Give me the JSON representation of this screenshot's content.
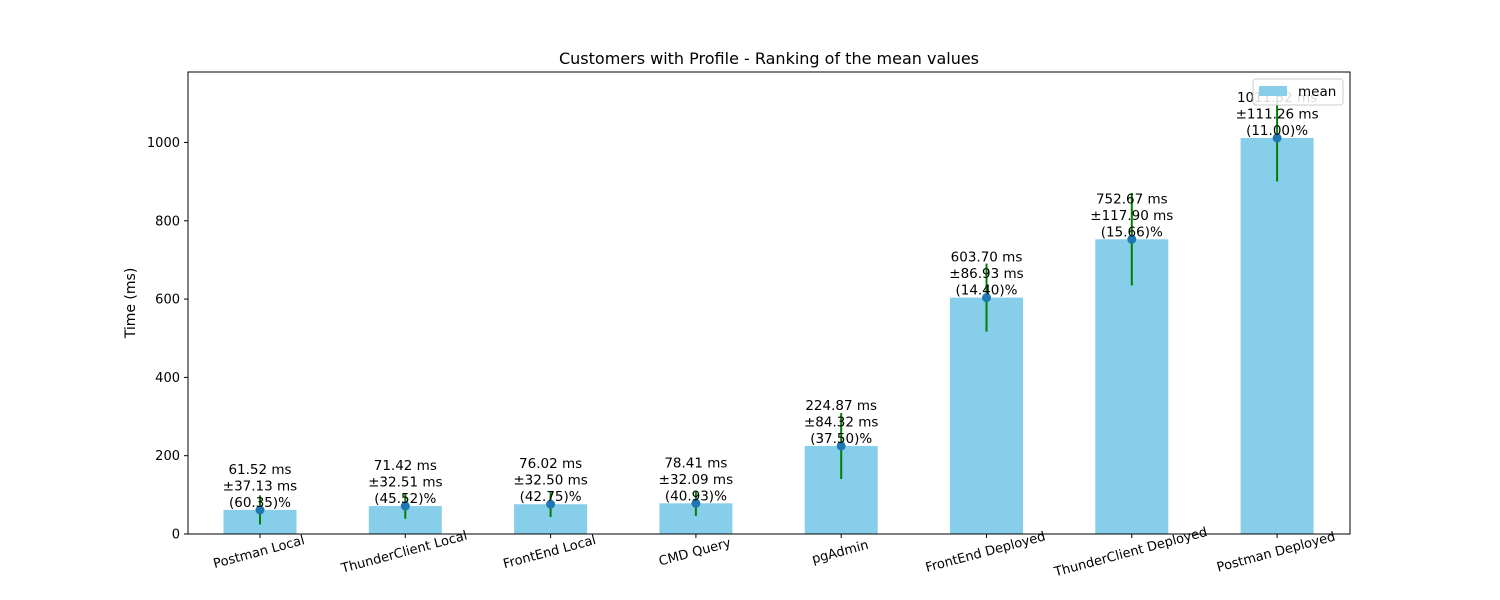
{
  "chart_data": {
    "type": "bar",
    "title": "Customers with Profile - Ranking of the mean values",
    "xlabel": "",
    "ylabel": "Time (ms)",
    "ylim": [
      0,
      1180
    ],
    "yticks": [
      "0",
      "200",
      "400",
      "600",
      "800",
      "1000"
    ],
    "grid": false,
    "legend": {
      "position": "top-right",
      "entries": [
        "mean"
      ]
    },
    "categories": [
      "Postman Local",
      "ThunderClient Local",
      "FrontEnd Local",
      "CMD Query",
      "pgAdmin",
      "FrontEnd Deployed",
      "ThunderClient Deployed",
      "Postman Deployed"
    ],
    "series": [
      {
        "name": "mean",
        "values": [
          61.52,
          71.42,
          76.02,
          78.41,
          224.87,
          603.7,
          752.67,
          1011.52
        ]
      }
    ],
    "std": [
      37.13,
      32.51,
      32.5,
      32.09,
      84.32,
      86.93,
      117.9,
      111.26
    ],
    "cv_percent": [
      60.35,
      45.52,
      42.75,
      40.93,
      37.5,
      14.4,
      15.66,
      11.0
    ],
    "data_labels": [
      [
        "61.52 ms",
        "±37.13 ms",
        "(60.35)%"
      ],
      [
        "71.42 ms",
        "±32.51 ms",
        "(45.52)%"
      ],
      [
        "76.02 ms",
        "±32.50 ms",
        "(42.75)%"
      ],
      [
        "78.41 ms",
        "±32.09 ms",
        "(40.93)%"
      ],
      [
        "224.87 ms",
        "±84.32 ms",
        "(37.50)%"
      ],
      [
        "603.70 ms",
        "±86.93 ms",
        "(14.40)%"
      ],
      [
        "752.67 ms",
        "±117.90 ms",
        "(15.66)%"
      ],
      [
        "1011.52 ms",
        "±111.26 ms",
        "(11.00)%"
      ]
    ],
    "colors": {
      "bar": "#87ceeb",
      "errorbar": "#008000",
      "marker": "#1f77b4",
      "axis": "#000000"
    }
  }
}
